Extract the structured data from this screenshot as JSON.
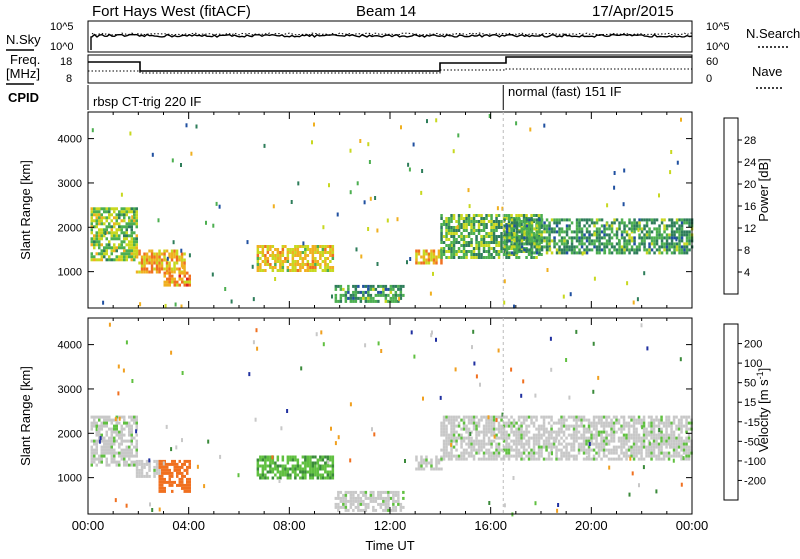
{
  "header": {
    "title": "Fort Hays West (fitACF)",
    "beam": "Beam 14",
    "date": "17/Apr/2015"
  },
  "status_panels": {
    "nsky_label": "N.Sky",
    "nsky_ticks": [
      "10^5",
      "10^0"
    ],
    "nsearch_label": "N.Search",
    "nsearch_ticks": [
      "10^5",
      "10^0"
    ],
    "freq_label_line1": "Freq.",
    "freq_label_line2": "[MHz]",
    "freq_ticks": [
      "18",
      "8"
    ],
    "nave_label": "Nave",
    "nave_ticks": [
      "60",
      "0"
    ],
    "cpid_label": "CPID",
    "cpid_segments": [
      {
        "label": "rbsp CT-trig 220 IF",
        "start_hour": 0.0,
        "end_hour": 16.5
      },
      {
        "label": "normal (fast) 151 IF",
        "start_hour": 16.5,
        "end_hour": 24.0
      }
    ]
  },
  "colors": {
    "power": [
      "#2020d0",
      "#2050a0",
      "#2e7d5a",
      "#4caf50",
      "#c8d820",
      "#f0b020",
      "#f07020",
      "#e02020"
    ],
    "velocity": [
      "#e02020",
      "#f07020",
      "#f0a020",
      "#c8c8c8",
      "#c8c8c8",
      "#60c040",
      "#3a8a3a",
      "#2030a0",
      "#2020d0"
    ]
  },
  "chart_data": [
    {
      "type": "heatmap",
      "title": "Power",
      "xlabel": "",
      "ylabel": "Slant Range [km]",
      "xlim": [
        0,
        24
      ],
      "ylim": [
        180,
        4600
      ],
      "yticks": [
        1000,
        2000,
        3000,
        4000
      ],
      "ytick_labels": [
        "1000",
        "2000",
        "3000",
        "4000"
      ],
      "colorbar": {
        "label": "Power [dB]",
        "ticks": [
          "4",
          "8",
          "12",
          "16",
          "20",
          "24",
          "28"
        ],
        "boundaries": [
          0,
          4,
          8,
          12,
          16,
          20,
          24,
          28,
          32
        ]
      },
      "regions": [
        {
          "t0": 0.1,
          "t1": 1.9,
          "r0": 1250,
          "r1": 2450,
          "value": 16
        },
        {
          "t0": 1.9,
          "t1": 3.8,
          "r0": 1000,
          "r1": 1500,
          "value": 22
        },
        {
          "t0": 3.0,
          "t1": 4.0,
          "r0": 700,
          "r1": 1000,
          "value": 24
        },
        {
          "t0": 6.7,
          "t1": 9.7,
          "r0": 1000,
          "r1": 1600,
          "value": 20
        },
        {
          "t0": 9.8,
          "t1": 12.5,
          "r0": 300,
          "r1": 700,
          "value": 12
        },
        {
          "t0": 13.0,
          "t1": 14.0,
          "r0": 1200,
          "r1": 1500,
          "value": 22
        },
        {
          "t0": 14.0,
          "t1": 18.0,
          "r0": 1300,
          "r1": 2300,
          "value": 14
        },
        {
          "t0": 16.5,
          "t1": 24.0,
          "r0": 1400,
          "r1": 2200,
          "value": 12
        }
      ]
    },
    {
      "type": "heatmap",
      "title": "Velocity",
      "xlabel": "Time UT",
      "ylabel": "Slant Range [km]",
      "xlim": [
        0,
        24
      ],
      "ylim": [
        180,
        4600
      ],
      "xticks": [
        0,
        4,
        8,
        12,
        16,
        20,
        24
      ],
      "xtick_labels": [
        "00:00",
        "04:00",
        "08:00",
        "12:00",
        "16:00",
        "20:00",
        "00:00"
      ],
      "yticks": [
        1000,
        2000,
        3000,
        4000
      ],
      "ytick_labels": [
        "1000",
        "2000",
        "3000",
        "4000"
      ],
      "colorbar": {
        "label": "Velocity [m s^-1]",
        "ticks": [
          "200",
          "100",
          "50",
          "15",
          "-15",
          "-50",
          "-100",
          "-200"
        ],
        "boundaries": [
          -300,
          -200,
          -100,
          -50,
          -15,
          15,
          50,
          100,
          200,
          300
        ]
      },
      "regions": [
        {
          "t0": 0.1,
          "t1": 1.9,
          "r0": 1300,
          "r1": 2400,
          "value": 0
        },
        {
          "t0": 1.9,
          "t1": 2.8,
          "r0": 1000,
          "r1": 1400,
          "value": 0
        },
        {
          "t0": 2.8,
          "t1": 4.0,
          "r0": 700,
          "r1": 1400,
          "value": -150
        },
        {
          "t0": 6.7,
          "t1": 9.7,
          "r0": 1000,
          "r1": 1500,
          "value": 40
        },
        {
          "t0": 9.8,
          "t1": 12.5,
          "r0": 250,
          "r1": 700,
          "value": 0
        },
        {
          "t0": 13.0,
          "t1": 14.0,
          "r0": 1200,
          "r1": 1500,
          "value": 0
        },
        {
          "t0": 14.0,
          "t1": 24.0,
          "r0": 1400,
          "r1": 2400,
          "value": 0
        }
      ]
    }
  ]
}
